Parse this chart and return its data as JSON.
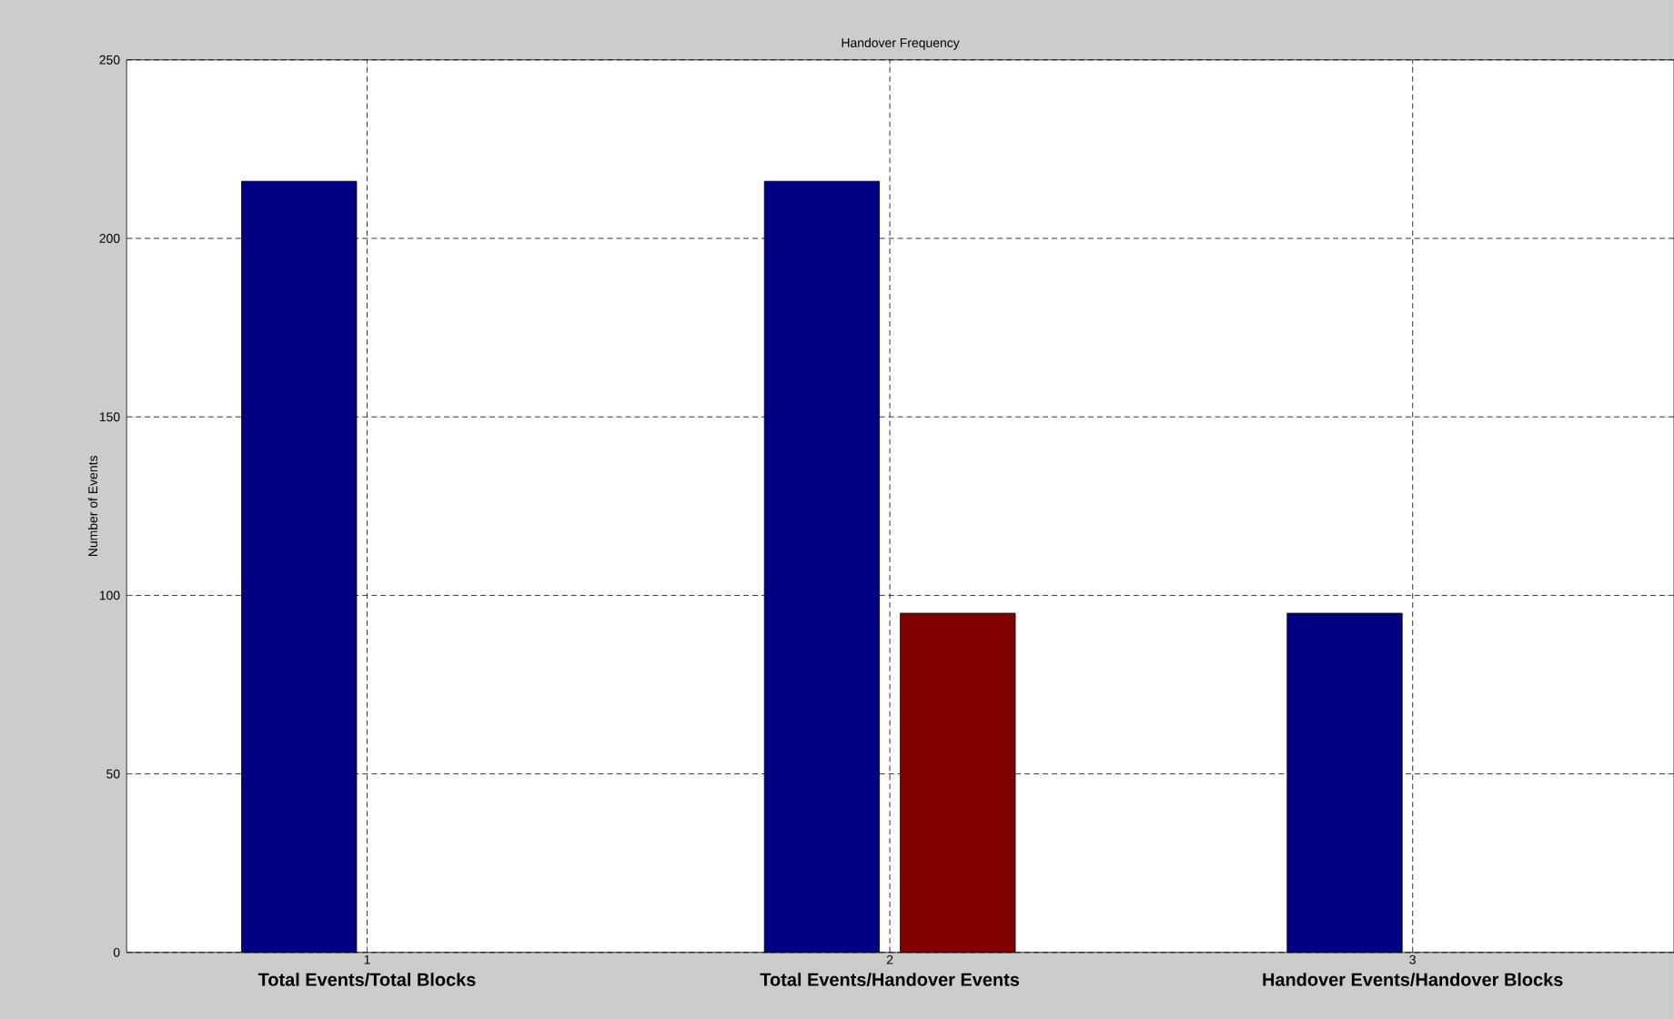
{
  "chart_data": {
    "type": "bar",
    "title": "Handover Frequency",
    "ylabel": "Number of Events",
    "x": [
      1,
      2,
      3
    ],
    "series": [
      {
        "color": "#000080",
        "values": [
          216,
          216,
          95
        ]
      },
      {
        "color": "#800000",
        "values": [
          null,
          95,
          null
        ]
      }
    ],
    "xlim": [
      0.54,
      3.5
    ],
    "xticks": [
      1,
      2,
      3
    ],
    "ylim": [
      0,
      250
    ],
    "yticks": [
      0,
      50,
      100,
      150,
      200,
      250
    ],
    "grid": true,
    "annotations": [
      "Total Events/Total Blocks",
      "Total Events/Handover Events",
      "Handover Events/Handover Blocks"
    ]
  }
}
